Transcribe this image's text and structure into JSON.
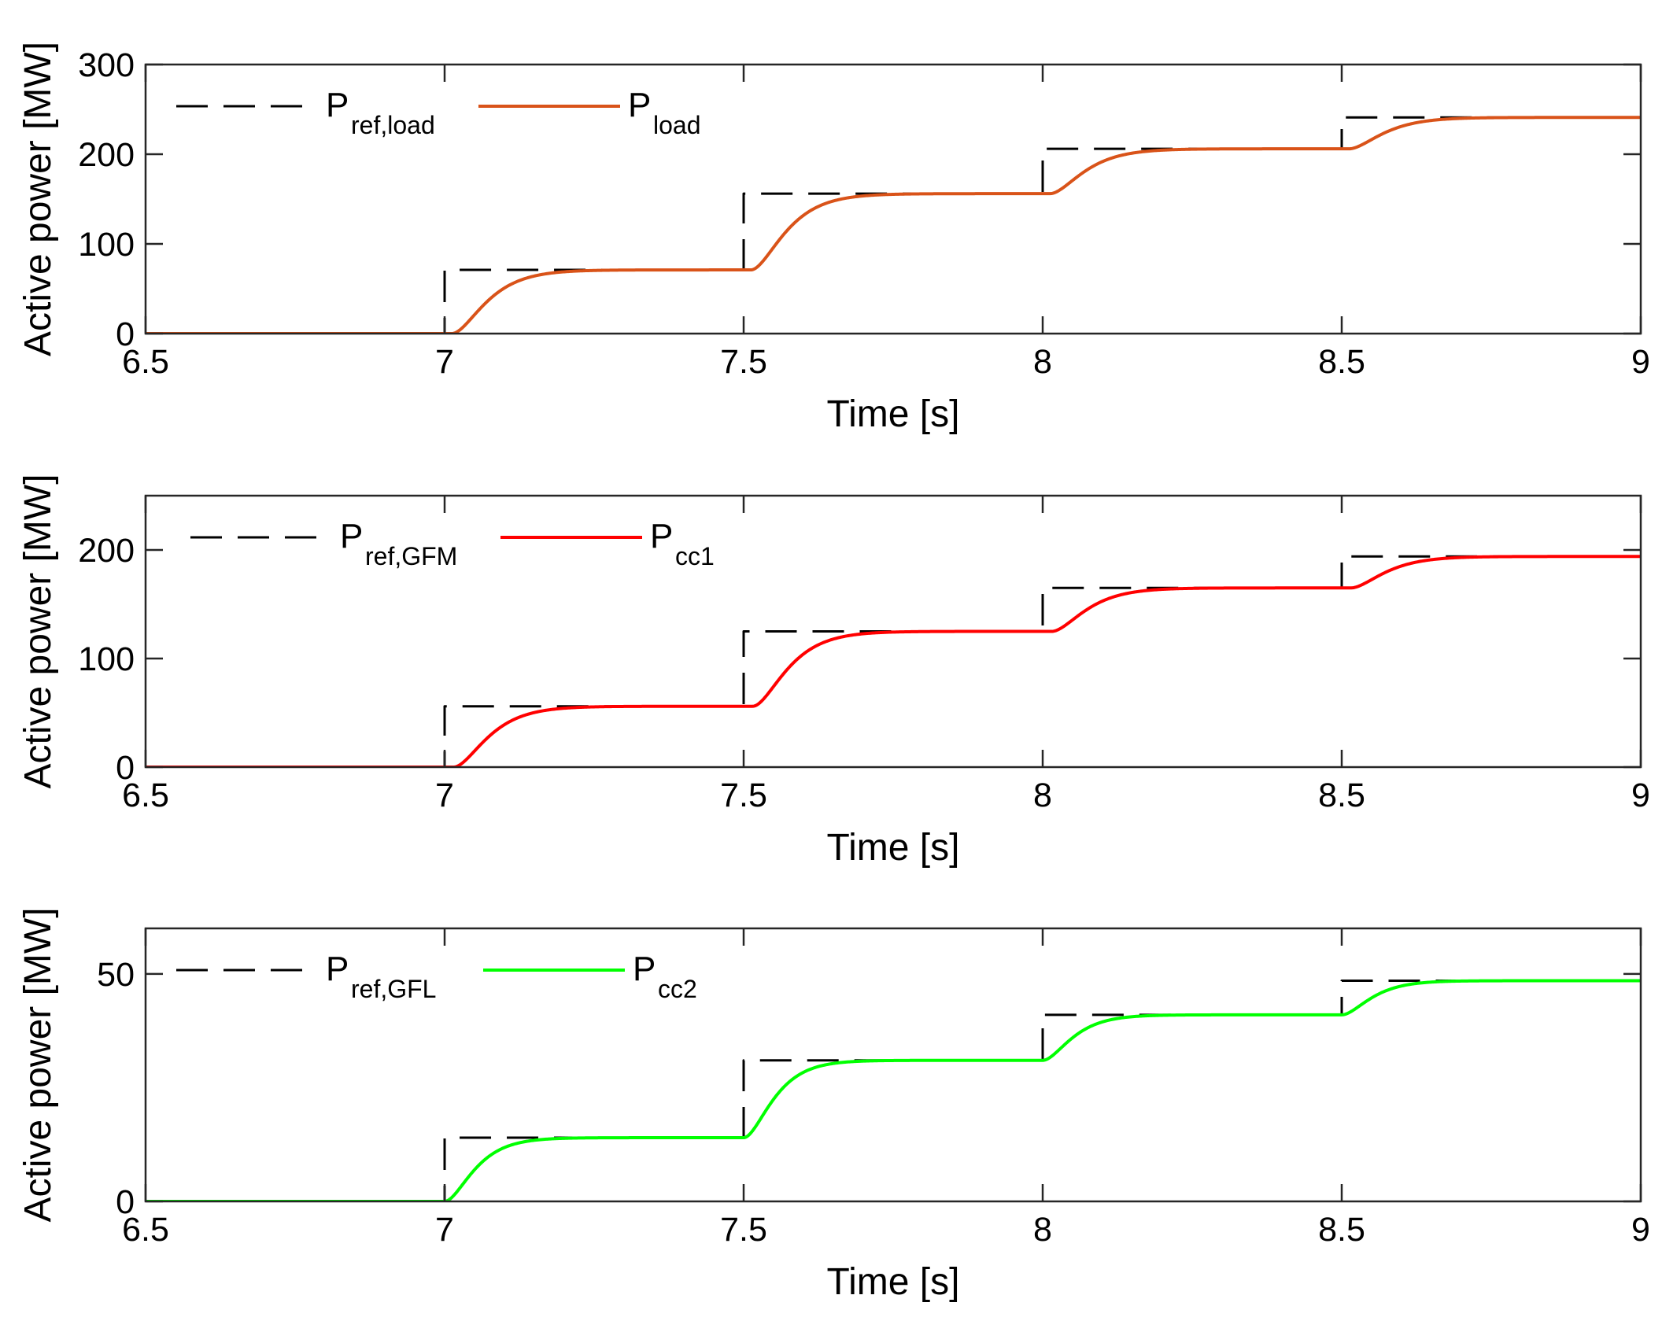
{
  "chart_data": [
    {
      "type": "line",
      "xlabel": "Time [s]",
      "ylabel": "Active power [MW]",
      "xlim": [
        6.5,
        9
      ],
      "ylim": [
        0,
        300
      ],
      "xticks": [
        6.5,
        7,
        7.5,
        8,
        8.5,
        9
      ],
      "xtick_labels": [
        "6.5",
        "7",
        "7.5",
        "8",
        "8.5",
        "9"
      ],
      "yticks": [
        0,
        100,
        200,
        300
      ],
      "ytick_labels": [
        "0",
        "100",
        "200",
        "300"
      ],
      "grid": false,
      "legend_position": "top-left",
      "series": [
        {
          "name_main": "P",
          "name_sub": "ref,load",
          "style": "dashed",
          "color": "#000000",
          "kind": "step",
          "x0": 6.5,
          "x1": 9,
          "breaks": [
            7,
            7.5,
            8,
            8.5
          ],
          "levels": [
            0,
            71,
            156,
            206,
            241
          ]
        },
        {
          "name_main": "P",
          "name_sub": "load",
          "style": "solid",
          "color": "#D95319",
          "kind": "response",
          "x0": 6.5,
          "x1": 9,
          "breaks": [
            7,
            7.5,
            8,
            8.5
          ],
          "levels": [
            0,
            71,
            156,
            206,
            241
          ],
          "delay": 0.012,
          "tau": 0.035
        }
      ]
    },
    {
      "type": "line",
      "xlabel": "Time [s]",
      "ylabel": "Active power [MW]",
      "xlim": [
        6.5,
        9
      ],
      "ylim": [
        0,
        250
      ],
      "xticks": [
        6.5,
        7,
        7.5,
        8,
        8.5,
        9
      ],
      "xtick_labels": [
        "6.5",
        "7",
        "7.5",
        "8",
        "8.5",
        "9"
      ],
      "yticks": [
        0,
        100,
        200
      ],
      "ytick_labels": [
        "0",
        "100",
        "200"
      ],
      "grid": false,
      "legend_position": "top-left",
      "series": [
        {
          "name_main": "P",
          "name_sub": "ref,GFM",
          "style": "dashed",
          "color": "#000000",
          "kind": "step",
          "x0": 6.5,
          "x1": 9,
          "breaks": [
            7,
            7.5,
            8,
            8.5
          ],
          "levels": [
            0,
            56,
            125,
            165,
            194
          ]
        },
        {
          "name_main": "P",
          "name_sub": "cc1",
          "style": "solid",
          "color": "#FF0000",
          "kind": "response",
          "x0": 6.5,
          "x1": 9,
          "breaks": [
            7,
            7.5,
            8,
            8.5
          ],
          "levels": [
            0,
            56,
            125,
            165,
            194
          ],
          "delay": 0.015,
          "tau": 0.035
        }
      ]
    },
    {
      "type": "line",
      "xlabel": "Time [s]",
      "ylabel": "Active power [MW]",
      "xlim": [
        6.5,
        9
      ],
      "ylim": [
        0,
        60
      ],
      "xticks": [
        6.5,
        7,
        7.5,
        8,
        8.5,
        9
      ],
      "xtick_labels": [
        "6.5",
        "7",
        "7.5",
        "8",
        "8.5",
        "9"
      ],
      "yticks": [
        0,
        50
      ],
      "ytick_labels": [
        "0",
        "50"
      ],
      "grid": false,
      "legend_position": "top-left",
      "series": [
        {
          "name_main": "P",
          "name_sub": "ref,GFL",
          "style": "dashed",
          "color": "#000000",
          "kind": "step",
          "x0": 6.5,
          "x1": 9,
          "breaks": [
            7,
            7.5,
            8,
            8.5
          ],
          "levels": [
            0,
            14,
            31,
            41,
            48.5
          ]
        },
        {
          "name_main": "P",
          "name_sub": "cc2",
          "style": "solid",
          "color": "#00FF00",
          "kind": "response",
          "x0": 6.5,
          "x1": 9,
          "breaks": [
            7,
            7.5,
            8,
            8.5
          ],
          "levels": [
            0,
            14,
            31,
            41,
            48.5
          ],
          "delay": 0.0,
          "tau": 0.03
        }
      ]
    }
  ]
}
